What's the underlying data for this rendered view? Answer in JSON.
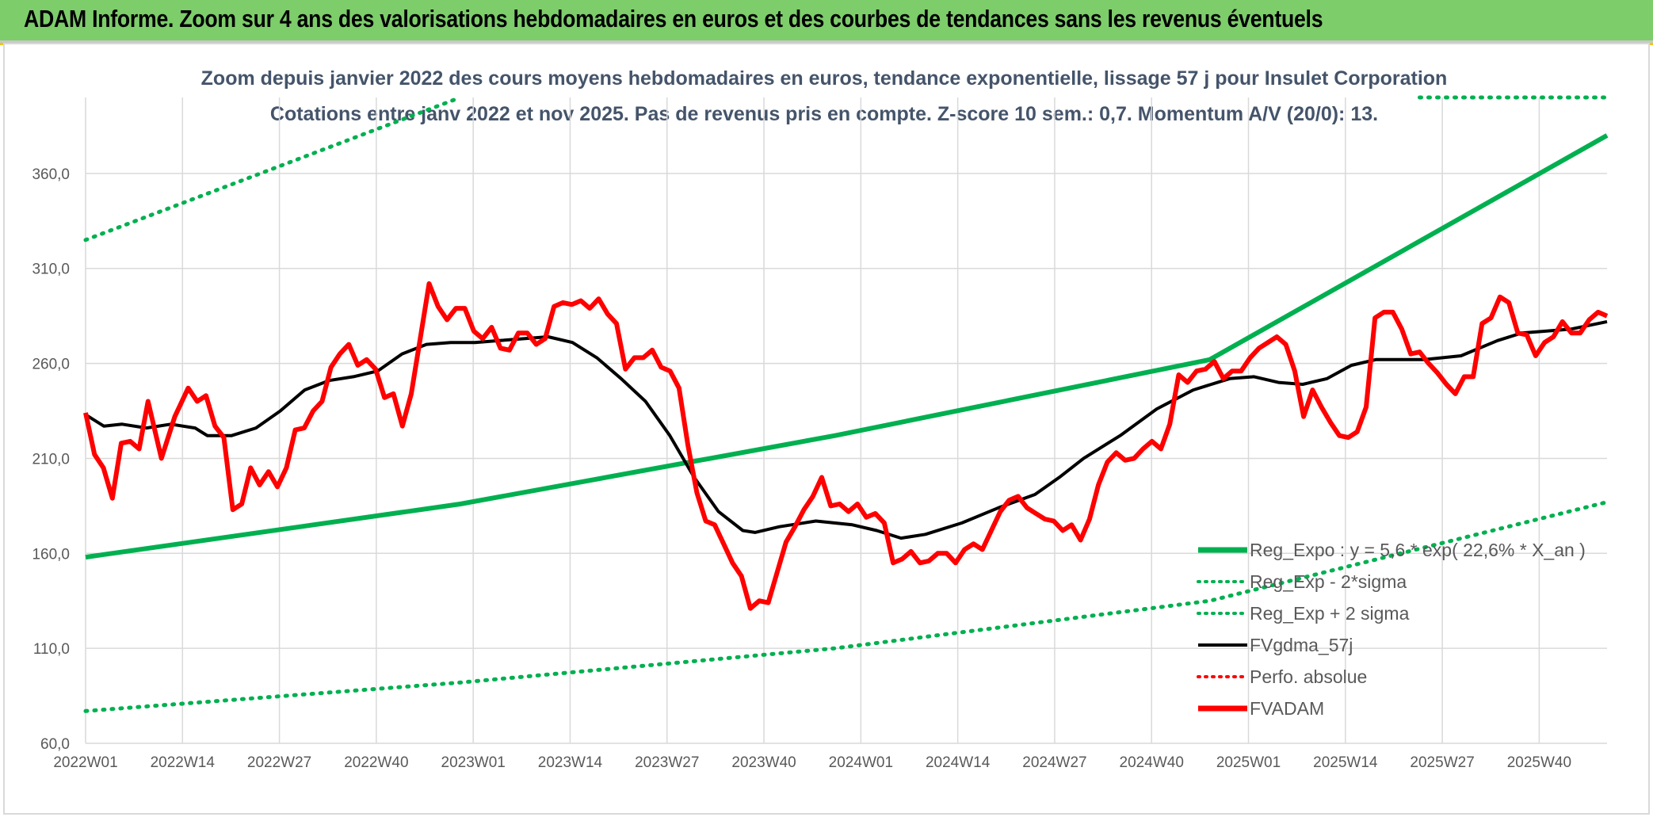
{
  "header": {
    "title": "ADAM Informe. Zoom sur 4 ans des valorisations hebdomadaires en euros et des courbes de tendances sans les revenus éventuels"
  },
  "colors": {
    "banner": "#7dcd6b",
    "reg": "#00b050",
    "sigma": "#00b050",
    "gdma": "#000000",
    "perfo": "#ff0000",
    "fvadam": "#ff0000",
    "grid": "#d9d9d9"
  },
  "chart_data": {
    "type": "line",
    "subtitle1": "Zoom depuis janvier 2022 des cours moyens hebdomadaires en euros, tendance exponentielle, lissage 57 j pour Insulet Corporation",
    "subtitle2": "Cotations entre janv 2022 et nov 2025. Pas de revenus pris en compte. Z-score 10 sem.: 0,7. Momentum A/V (20/0): 13.",
    "ylim": [
      60,
      400
    ],
    "yticks": [
      "60,0",
      "110,0",
      "160,0",
      "210,0",
      "260,0",
      "310,0",
      "360,0"
    ],
    "xticks": [
      "2022W01",
      "2022W14",
      "2022W27",
      "2022W40",
      "2023W01",
      "2023W14",
      "2023W27",
      "2023W40",
      "2024W01",
      "2024W14",
      "2024W27",
      "2024W40",
      "2025W01",
      "2025W14",
      "2025W27",
      "2025W40"
    ],
    "n_weeks": 204,
    "legend": [
      {
        "label": "Reg_Expo : y = 5,6 * exp( 22,6% *  X_an )",
        "style": "solid",
        "color": "#00b050"
      },
      {
        "label": "Reg_Exp - 2*sigma",
        "style": "dotted",
        "color": "#00b050"
      },
      {
        "label": "Reg_Exp + 2 sigma",
        "style": "dotted",
        "color": "#00b050"
      },
      {
        "label": "FVgdma_57j",
        "style": "solid",
        "color": "#000000"
      },
      {
        "label": "Perfo. absolue",
        "style": "dotted",
        "color": "#ff0000"
      },
      {
        "label": "FVADAM",
        "style": "solid-thick",
        "color": "#ff0000"
      }
    ],
    "series": [
      {
        "name": "Reg_Expo : y = 5,6 * exp( 22,6% *  X_an )",
        "points": [
          [
            0,
            158
          ],
          [
            50,
            186
          ],
          [
            100,
            222
          ],
          [
            150,
            262
          ],
          [
            203,
            380
          ]
        ]
      },
      {
        "name": "Reg_Exp - 2*sigma",
        "points": [
          [
            0,
            77
          ],
          [
            50,
            92
          ],
          [
            100,
            110
          ],
          [
            150,
            135
          ],
          [
            203,
            187
          ]
        ]
      },
      {
        "name": "Reg_Exp + 2 sigma",
        "points": [
          [
            0,
            325
          ],
          [
            38,
            382
          ],
          [
            50,
            400
          ]
        ],
        "points2": [
          [
            178,
            400
          ],
          [
            203,
            400
          ]
        ]
      },
      {
        "name": "FVgdma_57j",
        "points": [
          [
            0,
            233
          ],
          [
            3,
            227
          ],
          [
            6,
            228
          ],
          [
            10,
            226
          ],
          [
            14,
            228
          ],
          [
            18,
            226
          ],
          [
            20,
            222
          ],
          [
            24,
            222
          ],
          [
            28,
            226
          ],
          [
            32,
            235
          ],
          [
            36,
            246
          ],
          [
            40,
            251
          ],
          [
            44,
            253
          ],
          [
            48,
            256
          ],
          [
            52,
            265
          ],
          [
            56,
            270
          ],
          [
            60,
            271
          ],
          [
            64,
            271
          ],
          [
            68,
            272
          ],
          [
            72,
            273
          ],
          [
            76,
            274
          ],
          [
            80,
            271
          ],
          [
            84,
            263
          ],
          [
            88,
            252
          ],
          [
            92,
            240
          ],
          [
            96,
            222
          ],
          [
            100,
            200
          ],
          [
            104,
            182
          ],
          [
            108,
            172
          ],
          [
            110,
            171
          ],
          [
            114,
            174
          ],
          [
            120,
            177
          ],
          [
            126,
            175
          ],
          [
            130,
            172
          ],
          [
            134,
            168
          ],
          [
            138,
            170
          ],
          [
            144,
            176
          ],
          [
            150,
            184
          ],
          [
            156,
            191
          ],
          [
            160,
            200
          ],
          [
            164,
            210
          ],
          [
            170,
            222
          ],
          [
            176,
            236
          ],
          [
            182,
            246
          ],
          [
            188,
            252
          ],
          [
            192,
            253
          ],
          [
            196,
            250
          ],
          [
            200,
            249
          ],
          [
            204,
            252
          ],
          [
            208,
            259
          ],
          [
            212,
            262
          ],
          [
            220,
            262
          ],
          [
            226,
            264
          ],
          [
            232,
            272
          ],
          [
            236,
            276
          ],
          [
            244,
            278
          ],
          [
            250,
            282
          ]
        ]
      },
      {
        "name": "FVADAM",
        "points": [
          [
            0,
            234
          ],
          [
            2,
            212
          ],
          [
            4,
            205
          ],
          [
            6,
            189
          ],
          [
            8,
            218
          ],
          [
            10,
            219
          ],
          [
            12,
            215
          ],
          [
            14,
            240
          ],
          [
            17,
            210
          ],
          [
            20,
            232
          ],
          [
            23,
            247
          ],
          [
            25,
            240
          ],
          [
            27,
            243
          ],
          [
            29,
            227
          ],
          [
            31,
            221
          ],
          [
            33,
            183
          ],
          [
            35,
            186
          ],
          [
            37,
            205
          ],
          [
            39,
            196
          ],
          [
            41,
            203
          ],
          [
            43,
            195
          ],
          [
            45,
            205
          ],
          [
            47,
            225
          ],
          [
            49,
            226
          ],
          [
            51,
            235
          ],
          [
            53,
            240
          ],
          [
            55,
            258
          ],
          [
            57,
            265
          ],
          [
            59,
            270
          ],
          [
            61,
            259
          ],
          [
            63,
            262
          ],
          [
            65,
            257
          ],
          [
            67,
            242
          ],
          [
            69,
            244
          ],
          [
            71,
            227
          ],
          [
            73,
            244
          ],
          [
            75,
            273
          ],
          [
            77,
            302
          ],
          [
            79,
            290
          ],
          [
            81,
            283
          ],
          [
            83,
            289
          ],
          [
            85,
            289
          ],
          [
            87,
            277
          ],
          [
            89,
            273
          ],
          [
            91,
            279
          ],
          [
            93,
            268
          ],
          [
            95,
            267
          ],
          [
            97,
            276
          ],
          [
            99,
            276
          ],
          [
            101,
            270
          ],
          [
            103,
            273
          ],
          [
            105,
            290
          ],
          [
            107,
            292
          ],
          [
            109,
            291
          ],
          [
            111,
            293
          ],
          [
            113,
            289
          ],
          [
            115,
            294
          ],
          [
            117,
            286
          ],
          [
            119,
            281
          ],
          [
            121,
            257
          ],
          [
            123,
            263
          ],
          [
            125,
            263
          ],
          [
            127,
            267
          ],
          [
            129,
            258
          ],
          [
            131,
            256
          ],
          [
            133,
            247
          ],
          [
            135,
            217
          ],
          [
            137,
            192
          ],
          [
            139,
            177
          ],
          [
            141,
            175
          ],
          [
            143,
            165
          ],
          [
            145,
            155
          ],
          [
            147,
            148
          ],
          [
            149,
            131
          ],
          [
            151,
            135
          ],
          [
            153,
            134
          ],
          [
            155,
            150
          ],
          [
            157,
            166
          ],
          [
            159,
            174
          ],
          [
            161,
            183
          ],
          [
            163,
            190
          ],
          [
            165,
            200
          ],
          [
            167,
            185
          ],
          [
            169,
            186
          ],
          [
            171,
            182
          ],
          [
            173,
            186
          ],
          [
            175,
            179
          ],
          [
            177,
            181
          ],
          [
            179,
            176
          ],
          [
            181,
            155
          ],
          [
            183,
            157
          ],
          [
            185,
            161
          ],
          [
            187,
            155
          ],
          [
            189,
            156
          ],
          [
            191,
            160
          ],
          [
            193,
            160
          ],
          [
            195,
            155
          ],
          [
            197,
            162
          ],
          [
            199,
            165
          ],
          [
            201,
            162
          ],
          [
            203,
            172
          ],
          [
            205,
            182
          ],
          [
            207,
            188
          ],
          [
            209,
            190
          ],
          [
            211,
            184
          ],
          [
            213,
            181
          ],
          [
            215,
            178
          ],
          [
            217,
            177
          ],
          [
            219,
            172
          ],
          [
            221,
            175
          ],
          [
            223,
            167
          ],
          [
            225,
            178
          ],
          [
            227,
            196
          ],
          [
            229,
            208
          ],
          [
            231,
            213
          ],
          [
            233,
            209
          ],
          [
            235,
            210
          ],
          [
            237,
            215
          ],
          [
            239,
            219
          ],
          [
            241,
            215
          ],
          [
            243,
            228
          ],
          [
            245,
            254
          ],
          [
            247,
            250
          ],
          [
            249,
            256
          ],
          [
            251,
            257
          ],
          [
            253,
            261
          ],
          [
            255,
            252
          ],
          [
            257,
            256
          ],
          [
            259,
            256
          ],
          [
            261,
            263
          ],
          [
            263,
            268
          ],
          [
            265,
            271
          ],
          [
            267,
            274
          ],
          [
            269,
            270
          ],
          [
            271,
            256
          ],
          [
            273,
            232
          ],
          [
            275,
            246
          ],
          [
            277,
            237
          ],
          [
            279,
            229
          ],
          [
            281,
            222
          ],
          [
            283,
            221
          ],
          [
            285,
            224
          ],
          [
            287,
            237
          ],
          [
            289,
            284
          ],
          [
            291,
            287
          ],
          [
            293,
            287
          ],
          [
            295,
            278
          ],
          [
            297,
            265
          ],
          [
            299,
            266
          ],
          [
            301,
            260
          ],
          [
            303,
            255
          ],
          [
            305,
            249
          ],
          [
            307,
            244
          ],
          [
            309,
            253
          ],
          [
            311,
            253
          ],
          [
            313,
            281
          ],
          [
            315,
            284
          ],
          [
            317,
            295
          ],
          [
            319,
            292
          ],
          [
            321,
            276
          ],
          [
            323,
            275
          ],
          [
            325,
            264
          ],
          [
            327,
            271
          ],
          [
            329,
            274
          ],
          [
            331,
            282
          ],
          [
            333,
            276
          ],
          [
            335,
            276
          ],
          [
            337,
            283
          ],
          [
            339,
            287
          ],
          [
            341,
            285
          ]
        ]
      }
    ]
  }
}
